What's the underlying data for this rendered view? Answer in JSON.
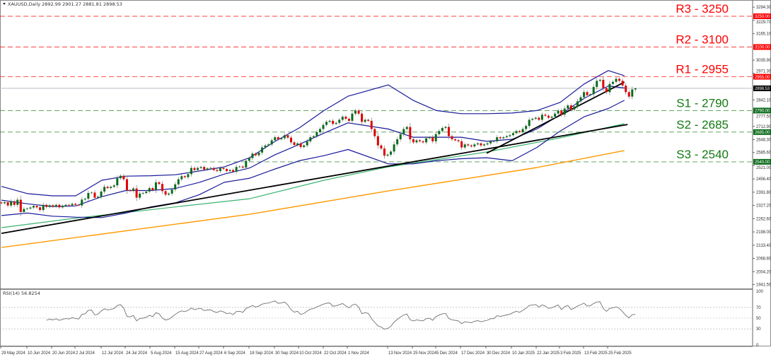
{
  "header": {
    "symbol": "XAUUSD,Daily",
    "open": "2892.99",
    "high": "2901.27",
    "low": "2881.81",
    "close": "2898.53"
  },
  "rsi_header": {
    "label": "RSI(14)",
    "value": "56.8254"
  },
  "colors": {
    "resistance": "#ff0000",
    "support": "#137a13",
    "bull_candle": "#0b6b1a",
    "bear_candle": "#e00000",
    "bollinger": "#1a1a9a",
    "ma_green": "#3cb371",
    "ma_orange": "#ff9900",
    "trendline": "#000000",
    "price_line": "#c0c4cc",
    "rsi_line": "#707070"
  },
  "chart_data": [
    {
      "type": "candlestick",
      "title": "XAUUSD,Daily",
      "first_bar_date": "29 May 2024",
      "closes": [
        2338,
        2343,
        2327,
        2347,
        2330,
        2355,
        2295,
        2310,
        2312,
        2317,
        2325,
        2318,
        2305,
        2330,
        2320,
        2328,
        2322,
        2330,
        2318,
        2325,
        2330,
        2327,
        2335,
        2330,
        2327,
        2356,
        2360,
        2388,
        2390,
        2365,
        2370,
        2395,
        2418,
        2412,
        2418,
        2425,
        2460,
        2472,
        2455,
        2402,
        2398,
        2410,
        2365,
        2385,
        2388,
        2395,
        2412,
        2402,
        2440,
        2432,
        2397,
        2380,
        2385,
        2405,
        2430,
        2455,
        2470,
        2465,
        2480,
        2510,
        2500,
        2510,
        2515,
        2502,
        2508,
        2510,
        2500,
        2495,
        2510,
        2505,
        2495,
        2500,
        2492,
        2515,
        2517,
        2512,
        2545,
        2558,
        2580,
        2572,
        2585,
        2610,
        2620,
        2625,
        2645,
        2660,
        2650,
        2655,
        2670,
        2658,
        2635,
        2622,
        2630,
        2612,
        2620,
        2640,
        2660,
        2665,
        2685,
        2700,
        2720,
        2735,
        2740,
        2725,
        2730,
        2745,
        2760,
        2750,
        2740,
        2775,
        2790,
        2775,
        2735,
        2745,
        2740,
        2700,
        2665,
        2620,
        2605,
        2570,
        2575,
        2590,
        2625,
        2650,
        2675,
        2700,
        2710,
        2650,
        2635,
        2645,
        2640,
        2635,
        2655,
        2660,
        2640,
        2675,
        2690,
        2705,
        2710,
        2665,
        2650,
        2645,
        2640,
        2610,
        2625,
        2620,
        2615,
        2625,
        2630,
        2620,
        2625,
        2630,
        2640,
        2640,
        2660,
        2655,
        2660,
        2665,
        2670,
        2680,
        2690,
        2685,
        2700,
        2715,
        2745,
        2750,
        2755,
        2745,
        2770,
        2765,
        2755,
        2760,
        2775,
        2790,
        2770,
        2800,
        2815,
        2795,
        2810,
        2835,
        2855,
        2880,
        2865,
        2870,
        2905,
        2935,
        2940,
        2900,
        2880,
        2920,
        2930,
        2945,
        2935,
        2912,
        2880,
        2858,
        2893,
        2898.53
      ],
      "last_bar_ohlc": {
        "open": 2892.99,
        "high": 2901.27,
        "low": 2881.81,
        "close": 2898.53
      },
      "y_ticks": [
        3294.3,
        3229.7,
        3165.1,
        3035.9,
        2971.3,
        2842.1,
        2777.5,
        2712.9,
        2648.3,
        2585.6,
        2521.0,
        2456.4,
        2391.8,
        2327.2,
        2262.6,
        2198.0,
        2133.4,
        2068.8,
        2004.2,
        1941.5
      ],
      "x_labels": [
        "29 May 2024",
        "10 Jun 2024",
        "20 Jun 2024",
        "2 Jul 2024",
        "12 Jul 2024",
        "24 Jul 2024",
        "5 Aug 2024",
        "15 Aug 2024",
        "27 Aug 2024",
        "6 Sep 2024",
        "18 Sep 2024",
        "30 Sep 2024",
        "10 Oct 2024",
        "22 Oct 2024",
        "1 Nov 2024",
        "13 Nov 2024",
        "25 Nov 2024",
        "5 Dec 2024",
        "17 Dec 2024",
        "30 Dec 2024",
        "10 Jan 2025",
        "22 Jan 2025",
        "3 Feb 2025",
        "13 Feb 2025",
        "25 Feb 2025"
      ],
      "ylim": [
        1870,
        3320
      ],
      "levels": [
        {
          "label": "R3 - 3250",
          "price": 3250,
          "tag": "3250.00",
          "kind": "resistance"
        },
        {
          "label": "R2 - 3100",
          "price": 3100,
          "tag": "3100.00",
          "kind": "resistance"
        },
        {
          "label": "R1 - 2955",
          "price": 2955,
          "tag": "2955.00",
          "kind": "resistance"
        },
        {
          "label": "S1 - 2790",
          "price": 2790,
          "tag": "2790.00",
          "kind": "support"
        },
        {
          "label": "S2 - 2685",
          "price": 2685,
          "tag": "2685.00",
          "kind": "support"
        },
        {
          "label": "S3 - 2540",
          "price": 2540,
          "tag": "2540.00",
          "kind": "support"
        }
      ],
      "current_price": {
        "price": 2898.53,
        "tag": "2898.53"
      },
      "overlays": {
        "bollinger_upper": [
          [
            "2024-05-29",
            2420
          ],
          [
            "2024-06-10",
            2385
          ],
          [
            "2024-06-20",
            2374
          ],
          [
            "2024-07-02",
            2374
          ],
          [
            "2024-07-12",
            2450
          ],
          [
            "2024-07-24",
            2470
          ],
          [
            "2024-08-05",
            2472
          ],
          [
            "2024-08-15",
            2477
          ],
          [
            "2024-08-27",
            2495
          ],
          [
            "2024-09-06",
            2515
          ],
          [
            "2024-09-18",
            2560
          ],
          [
            "2024-09-30",
            2640
          ],
          [
            "2024-10-10",
            2705
          ],
          [
            "2024-10-22",
            2790
          ],
          [
            "2024-11-01",
            2860
          ],
          [
            "2024-11-13",
            2915
          ],
          [
            "2024-11-25",
            2840
          ],
          [
            "2024-12-05",
            2790
          ],
          [
            "2024-12-17",
            2775
          ],
          [
            "2024-12-30",
            2775
          ],
          [
            "2025-01-10",
            2778
          ],
          [
            "2025-01-22",
            2790
          ],
          [
            "2025-02-03",
            2830
          ],
          [
            "2025-02-13",
            2920
          ],
          [
            "2025-02-25",
            2985
          ],
          [
            "2025-03-04",
            2960
          ]
        ],
        "bollinger_middle": [
          [
            "2024-05-29",
            2353
          ],
          [
            "2024-06-10",
            2335
          ],
          [
            "2024-06-20",
            2322
          ],
          [
            "2024-07-02",
            2325
          ],
          [
            "2024-07-12",
            2370
          ],
          [
            "2024-07-24",
            2400
          ],
          [
            "2024-08-05",
            2400
          ],
          [
            "2024-08-15",
            2410
          ],
          [
            "2024-08-27",
            2440
          ],
          [
            "2024-09-06",
            2480
          ],
          [
            "2024-09-18",
            2510
          ],
          [
            "2024-09-30",
            2575
          ],
          [
            "2024-10-10",
            2625
          ],
          [
            "2024-10-22",
            2680
          ],
          [
            "2024-11-01",
            2730
          ],
          [
            "2024-11-13",
            2700
          ],
          [
            "2024-11-25",
            2660
          ],
          [
            "2024-12-05",
            2660
          ],
          [
            "2024-12-17",
            2660
          ],
          [
            "2024-12-30",
            2640
          ],
          [
            "2025-01-10",
            2650
          ],
          [
            "2025-01-22",
            2700
          ],
          [
            "2025-02-03",
            2770
          ],
          [
            "2025-02-13",
            2850
          ],
          [
            "2025-02-25",
            2910
          ],
          [
            "2025-03-04",
            2900
          ]
        ],
        "bollinger_lower": [
          [
            "2024-05-29",
            2278
          ],
          [
            "2024-06-10",
            2290
          ],
          [
            "2024-06-20",
            2275
          ],
          [
            "2024-07-02",
            2270
          ],
          [
            "2024-07-12",
            2268
          ],
          [
            "2024-07-24",
            2290
          ],
          [
            "2024-08-05",
            2320
          ],
          [
            "2024-08-15",
            2340
          ],
          [
            "2024-08-27",
            2380
          ],
          [
            "2024-09-06",
            2440
          ],
          [
            "2024-09-18",
            2460
          ],
          [
            "2024-09-30",
            2505
          ],
          [
            "2024-10-10",
            2545
          ],
          [
            "2024-10-22",
            2570
          ],
          [
            "2024-11-01",
            2600
          ],
          [
            "2024-11-13",
            2530
          ],
          [
            "2024-11-25",
            2530
          ],
          [
            "2024-12-05",
            2545
          ],
          [
            "2024-12-17",
            2555
          ],
          [
            "2024-12-30",
            2560
          ],
          [
            "2025-01-10",
            2545
          ],
          [
            "2025-01-22",
            2610
          ],
          [
            "2025-02-03",
            2690
          ],
          [
            "2025-02-13",
            2760
          ],
          [
            "2025-02-25",
            2800
          ],
          [
            "2025-03-04",
            2840
          ]
        ],
        "ma_green": [
          [
            "2024-05-29",
            2219
          ],
          [
            "2024-07-02",
            2265
          ],
          [
            "2024-08-15",
            2320
          ],
          [
            "2024-09-18",
            2360
          ],
          [
            "2024-10-22",
            2450
          ],
          [
            "2024-11-13",
            2515
          ],
          [
            "2024-12-30",
            2588
          ],
          [
            "2025-02-03",
            2657
          ],
          [
            "2025-03-04",
            2726
          ]
        ],
        "ma_orange": [
          [
            "2024-05-29",
            2122
          ],
          [
            "2024-09-18",
            2284
          ],
          [
            "2024-11-13",
            2398
          ],
          [
            "2025-01-22",
            2512
          ],
          [
            "2025-03-04",
            2595
          ]
        ],
        "trendline_long": [
          [
            "2024-05-29",
            2191
          ],
          [
            "2025-03-05",
            2722
          ]
        ],
        "trendline_short": [
          [
            "2024-12-30",
            2582
          ],
          [
            "2025-03-04",
            2929
          ]
        ]
      }
    },
    {
      "type": "line",
      "title": "RSI(14) 56.8254",
      "indicator": "RSI",
      "period": 14,
      "last_value": 56.8254,
      "ylim": [
        0,
        100
      ],
      "levels": [
        70,
        50,
        30
      ],
      "y_ticks": [
        "100",
        "70",
        "50",
        "30",
        "0"
      ]
    }
  ]
}
